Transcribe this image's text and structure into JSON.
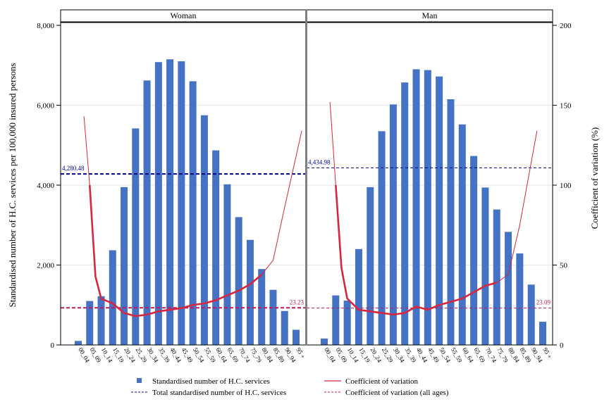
{
  "chart_data": {
    "type": "bar",
    "panels": [
      {
        "title": "Woman",
        "total_label": "4,280.48",
        "total_value": 4280.48,
        "cv_all_label": "23.23",
        "cv_all_value": 23.23,
        "categories": [
          "00_04",
          "05_09",
          "10_14",
          "15_19",
          "20_24",
          "25_29",
          "30_34",
          "35_39",
          "40_44",
          "45_49",
          "50_54",
          "55_59",
          "60_64",
          "65_69",
          "70_74",
          "75_79",
          "80_84",
          "85_89",
          "90_94",
          "95 +"
        ],
        "hc_services": [
          100,
          1100,
          1220,
          2370,
          3950,
          5420,
          6620,
          7080,
          7150,
          7100,
          6600,
          5750,
          4870,
          4020,
          3200,
          2630,
          1900,
          1380,
          850,
          380
        ],
        "cv": [
          143,
          100,
          43,
          29,
          26,
          20,
          18,
          19,
          21,
          22,
          23,
          25,
          26,
          28,
          31,
          34,
          38,
          44,
          53,
          86,
          134
        ],
        "cv_x": [
          0.5,
          1,
          1.5,
          2,
          3,
          4,
          5,
          6,
          7,
          8,
          9,
          10,
          11,
          12,
          13,
          14,
          15,
          16,
          17,
          18,
          19.5
        ],
        "cv_bold_to": 16
      },
      {
        "title": "Man",
        "total_label": "4,434.98",
        "total_value": 4434.98,
        "cv_all_label": "23.09",
        "cv_all_value": 23.09,
        "categories": [
          "00_04",
          "05_09",
          "10_14",
          "15_19",
          "20_24",
          "25_29",
          "30_34",
          "35_39",
          "40_44",
          "45_49",
          "50_54",
          "55_59",
          "60_64",
          "65_69",
          "70_74",
          "75_79",
          "80_84",
          "85_89",
          "90_94",
          "95 +"
        ],
        "hc_services": [
          160,
          1240,
          1110,
          2400,
          3950,
          5350,
          6020,
          6570,
          6900,
          6880,
          6720,
          6150,
          5520,
          4730,
          3940,
          3390,
          2830,
          2290,
          1510,
          580
        ],
        "cv": [
          152,
          100,
          48,
          29,
          22,
          21,
          20,
          19,
          20,
          24,
          22,
          25,
          27,
          29,
          33,
          37,
          39,
          44,
          75,
          134
        ],
        "cv_x": [
          0.5,
          1,
          1.5,
          2,
          3,
          4,
          5,
          6,
          7,
          8,
          9,
          10,
          11,
          12,
          13,
          14,
          15,
          16,
          17,
          18.5
        ],
        "cv_bold_to": 15
      }
    ],
    "ylabel": "Standardised number of H.C. services per 100,000 insured persons",
    "y2label": "Coefficient of variation (%)",
    "ylim": [
      0,
      8000
    ],
    "y2lim": [
      0,
      200
    ],
    "yticks": [
      "0",
      "2,000",
      "4,000",
      "6,000",
      "8,000"
    ],
    "y2ticks": [
      "0",
      "50",
      "100",
      "150",
      "200"
    ],
    "legend": [
      {
        "label": "Standardised number of H.C. services",
        "kind": "square",
        "color": "#4472c4"
      },
      {
        "label": "Coefficient of variation",
        "kind": "line",
        "color": "#d7263d"
      },
      {
        "label": "Total standardised number of H.C. services",
        "kind": "dash",
        "color": "#00008b"
      },
      {
        "label": "Coefficient of variation (all ages)",
        "kind": "dash",
        "color": "#c2185b"
      }
    ],
    "colors": {
      "bar": "#4472c4",
      "cv": "#d7263d",
      "total": "#00008b",
      "cv_all": "#c2185b"
    }
  }
}
